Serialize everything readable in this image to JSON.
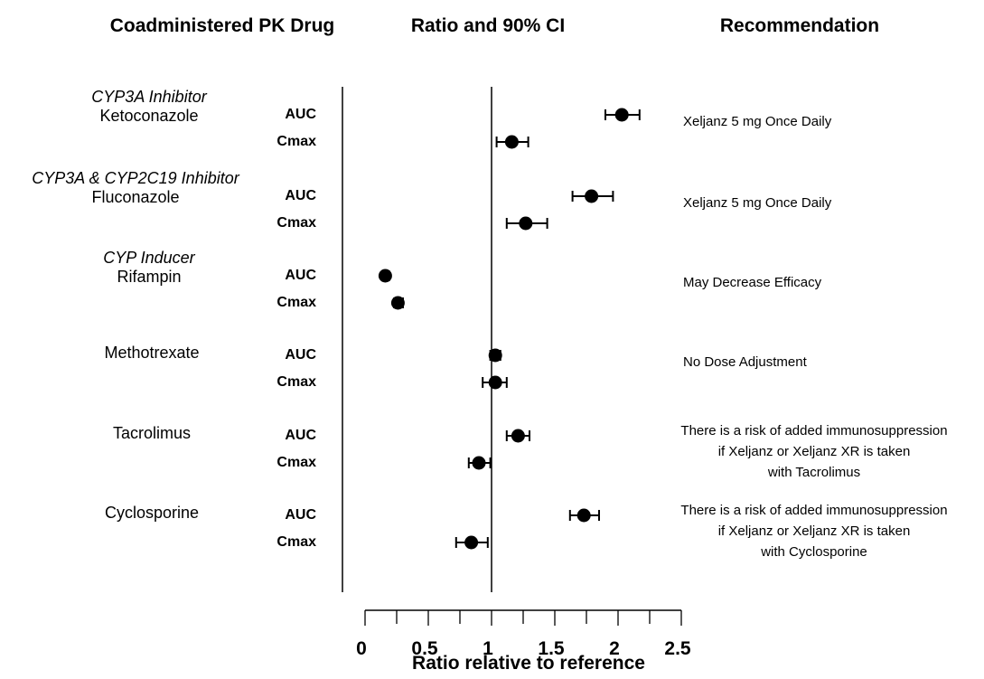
{
  "headers": {
    "drug": "Coadministered PK Drug",
    "ratio": "Ratio and 90% CI",
    "recommendation": "Recommendation"
  },
  "rows": [
    {
      "cls": "CYP3A Inhibitor",
      "drug": "Ketoconazole",
      "metrics": [
        "AUC",
        "Cmax"
      ],
      "rec": [
        "Xeljanz 5 mg Once Daily"
      ]
    },
    {
      "cls": "CYP3A & CYP2C19 Inhibitor",
      "drug": "Fluconazole",
      "metrics": [
        "AUC",
        "Cmax"
      ],
      "rec": [
        "Xeljanz 5 mg Once Daily"
      ]
    },
    {
      "cls": "CYP Inducer",
      "drug": "Rifampin",
      "metrics": [
        "AUC",
        "Cmax"
      ],
      "rec": [
        "May Decrease Efficacy"
      ]
    },
    {
      "cls": "",
      "drug": "Methotrexate",
      "metrics": [
        "AUC",
        "Cmax"
      ],
      "rec": [
        "No Dose Adjustment"
      ]
    },
    {
      "cls": "",
      "drug": "Tacrolimus",
      "metrics": [
        "AUC",
        "Cmax"
      ],
      "rec": [
        "There is a risk of added immunosuppression",
        "if Xeljanz or Xeljanz XR is taken",
        "with Tacrolimus"
      ]
    },
    {
      "cls": "",
      "drug": "Cyclosporine",
      "metrics": [
        "AUC",
        "Cmax"
      ],
      "rec": [
        "There is a risk of added immunosuppression",
        "if Xeljanz or Xeljanz XR is taken",
        "with Cyclosporine"
      ]
    }
  ],
  "chart_data": {
    "type": "scatter",
    "xlabel": "Ratio relative to reference",
    "xlim": [
      0,
      2.5
    ],
    "xticks": [
      "0",
      "0.5",
      "1",
      "1.5",
      "2",
      "2.5"
    ],
    "reference_line": 1,
    "points": [
      {
        "drug": "Ketoconazole",
        "metric": "AUC",
        "ratio": 2.03,
        "lo": 1.9,
        "hi": 2.17
      },
      {
        "drug": "Ketoconazole",
        "metric": "Cmax",
        "ratio": 1.16,
        "lo": 1.04,
        "hi": 1.29
      },
      {
        "drug": "Fluconazole",
        "metric": "AUC",
        "ratio": 1.79,
        "lo": 1.64,
        "hi": 1.96
      },
      {
        "drug": "Fluconazole",
        "metric": "Cmax",
        "ratio": 1.27,
        "lo": 1.12,
        "hi": 1.44
      },
      {
        "drug": "Rifampin",
        "metric": "AUC",
        "ratio": 0.16,
        "lo": 0.14,
        "hi": 0.19
      },
      {
        "drug": "Rifampin",
        "metric": "Cmax",
        "ratio": 0.26,
        "lo": 0.23,
        "hi": 0.3
      },
      {
        "drug": "Methotrexate",
        "metric": "AUC",
        "ratio": 1.03,
        "lo": 0.99,
        "hi": 1.07
      },
      {
        "drug": "Methotrexate",
        "metric": "Cmax",
        "ratio": 1.03,
        "lo": 0.93,
        "hi": 1.12
      },
      {
        "drug": "Tacrolimus",
        "metric": "AUC",
        "ratio": 1.21,
        "lo": 1.12,
        "hi": 1.3
      },
      {
        "drug": "Tacrolimus",
        "metric": "Cmax",
        "ratio": 0.9,
        "lo": 0.82,
        "hi": 0.99
      },
      {
        "drug": "Cyclosporine",
        "metric": "AUC",
        "ratio": 1.73,
        "lo": 1.62,
        "hi": 1.85
      },
      {
        "drug": "Cyclosporine",
        "metric": "Cmax",
        "ratio": 0.84,
        "lo": 0.72,
        "hi": 0.97
      }
    ]
  }
}
